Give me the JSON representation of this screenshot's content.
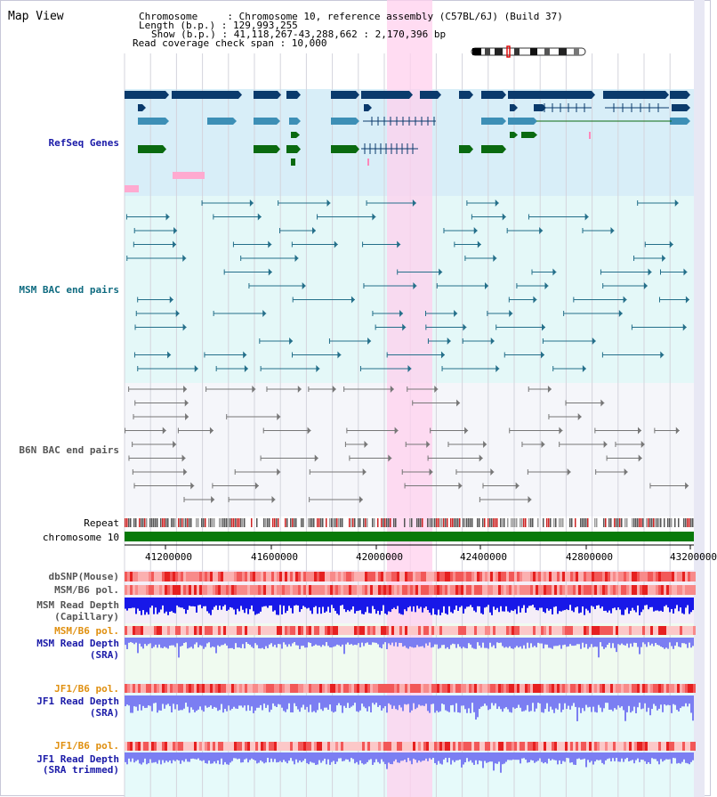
{
  "view": {
    "title": "Map View",
    "chromosome_label": "Chromosome     : Chromosome 10, reference assembly (C57BL/6J) (Build 37)",
    "length_label": "Length (b.p.) : 129,993,255",
    "show_label": "Show (b.p.) : 41,118,267-43,288,662 : 2,170,396 bp",
    "coverage_label": "Read coverage check span : 10,000"
  },
  "tracks": {
    "refseq": "RefSeq Genes",
    "msm_bac": "MSM BAC end pairs",
    "b6n_bac": "B6N BAC end pairs",
    "repeat": "Repeat",
    "chromosome": "chromosome 10",
    "dbsnp": "dbSNP(Mouse)",
    "msm_b6_pol_1": "MSM/B6 pol.",
    "msm_depth_cap_1": "MSM Read Depth",
    "msm_depth_cap_2": "(Capillary)",
    "msm_b6_pol_2": "MSM/B6 pol.",
    "msm_depth_sra_1": "MSM Read Depth",
    "msm_depth_sra_2": "(SRA)",
    "jf1_b6_pol_1": "JF1/B6 pol.",
    "jf1_depth_sra_1": "JF1 Read Depth",
    "jf1_depth_sra_2": "(SRA)",
    "jf1_b6_pol_2": "JF1/B6 pol.",
    "jf1_depth_trim_1": "JF1 Read Depth",
    "jf1_depth_trim_2": "(SRA trimmed)"
  },
  "axis": {
    "ticks": [
      "41200000",
      "41600000",
      "42000000",
      "42400000",
      "42800000",
      "43200000"
    ]
  },
  "colors": {
    "refseq_bg": "#d8eef8",
    "msm_bg": "#e4f8f8",
    "b6n_bg": "#f5f6fa",
    "highlight": "#ffd0ee",
    "gene_dark": "#0a3a6c",
    "gene_mid": "#3d8fb6",
    "gene_green": "#0a6a10",
    "pair_msm": "#246f8a",
    "pair_b6n": "#777777",
    "depth_dark": "#1818e8",
    "depth_light": "#7b7ef2"
  }
}
